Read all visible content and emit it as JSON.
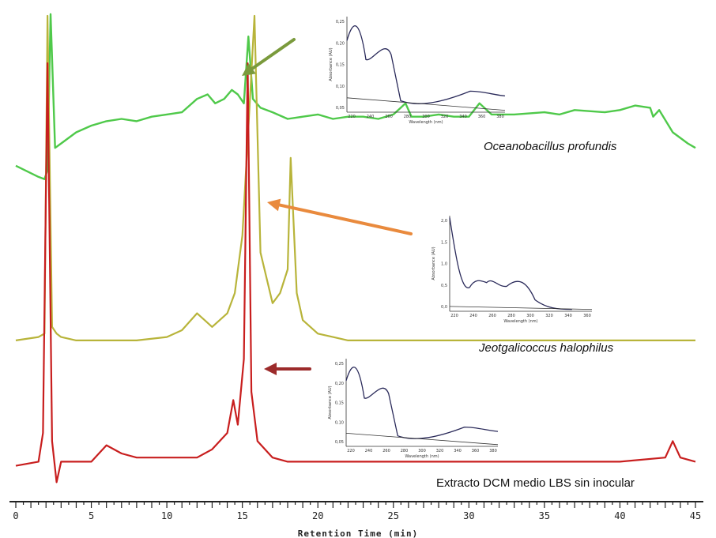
{
  "chart_data": {
    "type": "line",
    "xlabel": "Retention Time (min)",
    "xlim": [
      0,
      45
    ],
    "x_ticks": [
      0,
      5,
      10,
      15,
      20,
      25,
      30,
      35,
      40,
      45
    ],
    "series": [
      {
        "name": "Oceanobacillus profundis",
        "color": "#4fc94a",
        "x": [
          0,
          1.5,
          1.9,
          2.1,
          2.3,
          2.6,
          3.0,
          4,
          5,
          6,
          7,
          8,
          9,
          10,
          11,
          12,
          12.7,
          13.2,
          13.8,
          14.3,
          14.7,
          15.1,
          15.4,
          15.7,
          16.2,
          17,
          18,
          19,
          20,
          21,
          22,
          23,
          24,
          25,
          25.8,
          26.2,
          27,
          28,
          29,
          30,
          30.7,
          31.5,
          33,
          35,
          36,
          37,
          39,
          40,
          41,
          42,
          42.2,
          42.6,
          43.5,
          44.5,
          45
        ],
        "y": [
          32,
          27,
          26,
          30,
          100,
          40,
          42,
          47,
          50,
          52,
          53,
          52,
          54,
          55,
          56,
          62,
          64,
          60,
          62,
          66,
          64,
          60,
          90,
          62,
          58,
          56,
          53,
          54,
          55,
          53,
          54,
          54,
          53,
          55,
          60,
          54,
          54,
          55,
          54,
          54,
          60,
          55,
          55,
          56,
          55,
          57,
          56,
          57,
          59,
          58,
          54,
          57,
          47,
          42,
          40
        ]
      },
      {
        "name": "Jeotgalicoccus halophilus",
        "color": "#b8b43a",
        "x": [
          0,
          1.5,
          1.9,
          2.1,
          2.4,
          2.7,
          3.0,
          4,
          6,
          8,
          10,
          11,
          12,
          12.5,
          13,
          13.5,
          14,
          14.5,
          15,
          15.5,
          15.8,
          16.2,
          17,
          17.5,
          18,
          18.2,
          18.6,
          19,
          20,
          21,
          22,
          24,
          26,
          28,
          30,
          32,
          35,
          38,
          40,
          42,
          43,
          45
        ],
        "y": [
          4,
          5,
          6,
          100,
          8,
          6,
          5,
          4,
          4,
          4,
          5,
          7,
          12,
          10,
          8,
          10,
          12,
          18,
          35,
          75,
          100,
          30,
          15,
          18,
          25,
          58,
          18,
          10,
          6,
          5,
          4,
          4,
          4,
          4,
          4,
          4,
          4,
          4,
          4,
          4,
          4,
          4
        ]
      },
      {
        "name": "Extracto DCM medio LBS sin inocular",
        "color": "#c81e1e",
        "x": [
          0,
          1.5,
          1.8,
          2.1,
          2.4,
          2.7,
          3.0,
          4,
          5,
          6,
          7,
          8,
          10,
          12,
          13,
          14,
          14.4,
          14.7,
          15.1,
          15.35,
          15.6,
          16,
          16.5,
          17,
          18,
          20,
          25,
          30,
          35,
          40,
          43,
          43.5,
          44,
          45
        ],
        "y": [
          2,
          3,
          10,
          100,
          8,
          -2,
          3,
          3,
          3,
          7,
          5,
          4,
          4,
          4,
          6,
          10,
          18,
          12,
          28,
          100,
          20,
          8,
          6,
          4,
          3,
          3,
          3,
          3,
          3,
          3,
          4,
          8,
          4,
          3
        ]
      }
    ],
    "annotations": {
      "oceano_label": "Oceanobacillus profundis",
      "jeot_label": "Jeotgalicoccus halophilus",
      "blank_label": "Extracto DCM medio LBS sin inocular"
    },
    "insets": [
      {
        "for_series": "Oceanobacillus profundis",
        "ylabel": "Absorbance (AU)",
        "xlabel": "Wavelength (nm)",
        "y_ticks": [
          "0,25",
          "0,20",
          "0,15",
          "0,10",
          "0,05"
        ],
        "x_ticks": [
          "220",
          "240",
          "260",
          "280",
          "300",
          "320",
          "340",
          "360",
          "380"
        ]
      },
      {
        "for_series": "Jeotgalicoccus halophilus",
        "ylabel": "Absorbance (AU)",
        "xlabel": "Wavelength (nm)",
        "y_ticks": [
          "2,0",
          "1,5",
          "1,0",
          "0,5",
          "0,0"
        ],
        "x_ticks": [
          "220",
          "240",
          "260",
          "280",
          "300",
          "320",
          "340",
          "360"
        ]
      },
      {
        "for_series": "Extracto DCM medio LBS sin inocular",
        "ylabel": "Absorbance (AU)",
        "xlabel": "Wavelength (nm)",
        "y_ticks": [
          "0,25",
          "0,20",
          "0,15",
          "0,10",
          "0,05"
        ],
        "x_ticks": [
          "220",
          "240",
          "260",
          "280",
          "300",
          "320",
          "340",
          "360",
          "380"
        ]
      }
    ],
    "colors": {
      "arrow_green": "#7a9a3c",
      "arrow_orange": "#e98a3d",
      "arrow_red": "#9c2b2b",
      "inset_line": "#2a2a5a"
    }
  }
}
